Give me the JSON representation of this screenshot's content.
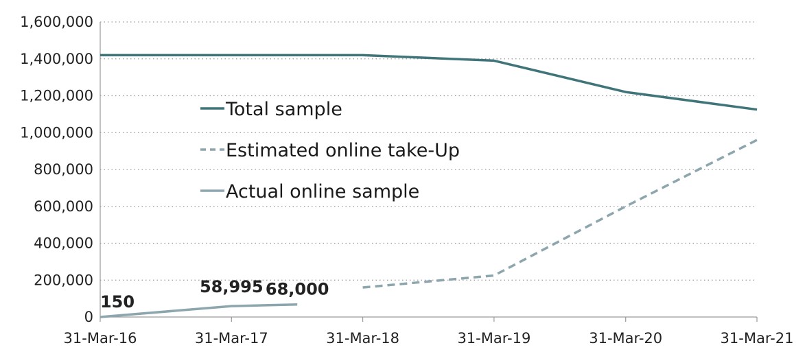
{
  "chart_data": {
    "type": "line",
    "x": [
      "31-Mar-16",
      "31-Mar-17",
      "31-Mar-18",
      "31-Mar-19",
      "31-Mar-20",
      "31-Mar-21"
    ],
    "ylim": [
      0,
      1600000
    ],
    "yticks": [
      "0",
      "200,000",
      "400,000",
      "600,000",
      "800,000",
      "1,000,000",
      "1,200,000",
      "1,400,000",
      "1,600,000"
    ],
    "grid": true,
    "legend_position": "inside-left",
    "series": [
      {
        "name": "Total sample",
        "style": "solid",
        "color": "#3f7579",
        "points": [
          {
            "x": "31-Mar-16",
            "y": 1420000
          },
          {
            "x": "31-Mar-17",
            "y": 1420000
          },
          {
            "x": "31-Mar-18",
            "y": 1420000
          },
          {
            "x": "31-Mar-19",
            "y": 1390000
          },
          {
            "x": "31-Mar-20",
            "y": 1220000
          },
          {
            "x": "31-Mar-21",
            "y": 1125000
          }
        ]
      },
      {
        "name": "Estimated online take-Up",
        "style": "dashed",
        "color": "#8da6ad",
        "points": [
          {
            "x": "31-Mar-18",
            "y": 160000
          },
          {
            "x": "31-Mar-19",
            "y": 225000
          },
          {
            "x": "31-Mar-20",
            "y": 600000
          },
          {
            "x": "31-Mar-21",
            "y": 960000
          }
        ]
      },
      {
        "name": "Actual online sample",
        "style": "solid",
        "color": "#8da6ad",
        "points": [
          {
            "x": "31-Mar-16",
            "y": 150
          },
          {
            "x": "31-Mar-17",
            "y": 58995
          },
          {
            "x": "30-Sep-17",
            "y": 68000
          }
        ]
      }
    ],
    "data_labels": [
      {
        "text": "150",
        "x": "31-Mar-16",
        "y": 150
      },
      {
        "text": "58,995",
        "x": "31-Mar-17",
        "y": 58995
      },
      {
        "text": "68,000",
        "x": "30-Sep-17",
        "y": 68000
      }
    ]
  }
}
